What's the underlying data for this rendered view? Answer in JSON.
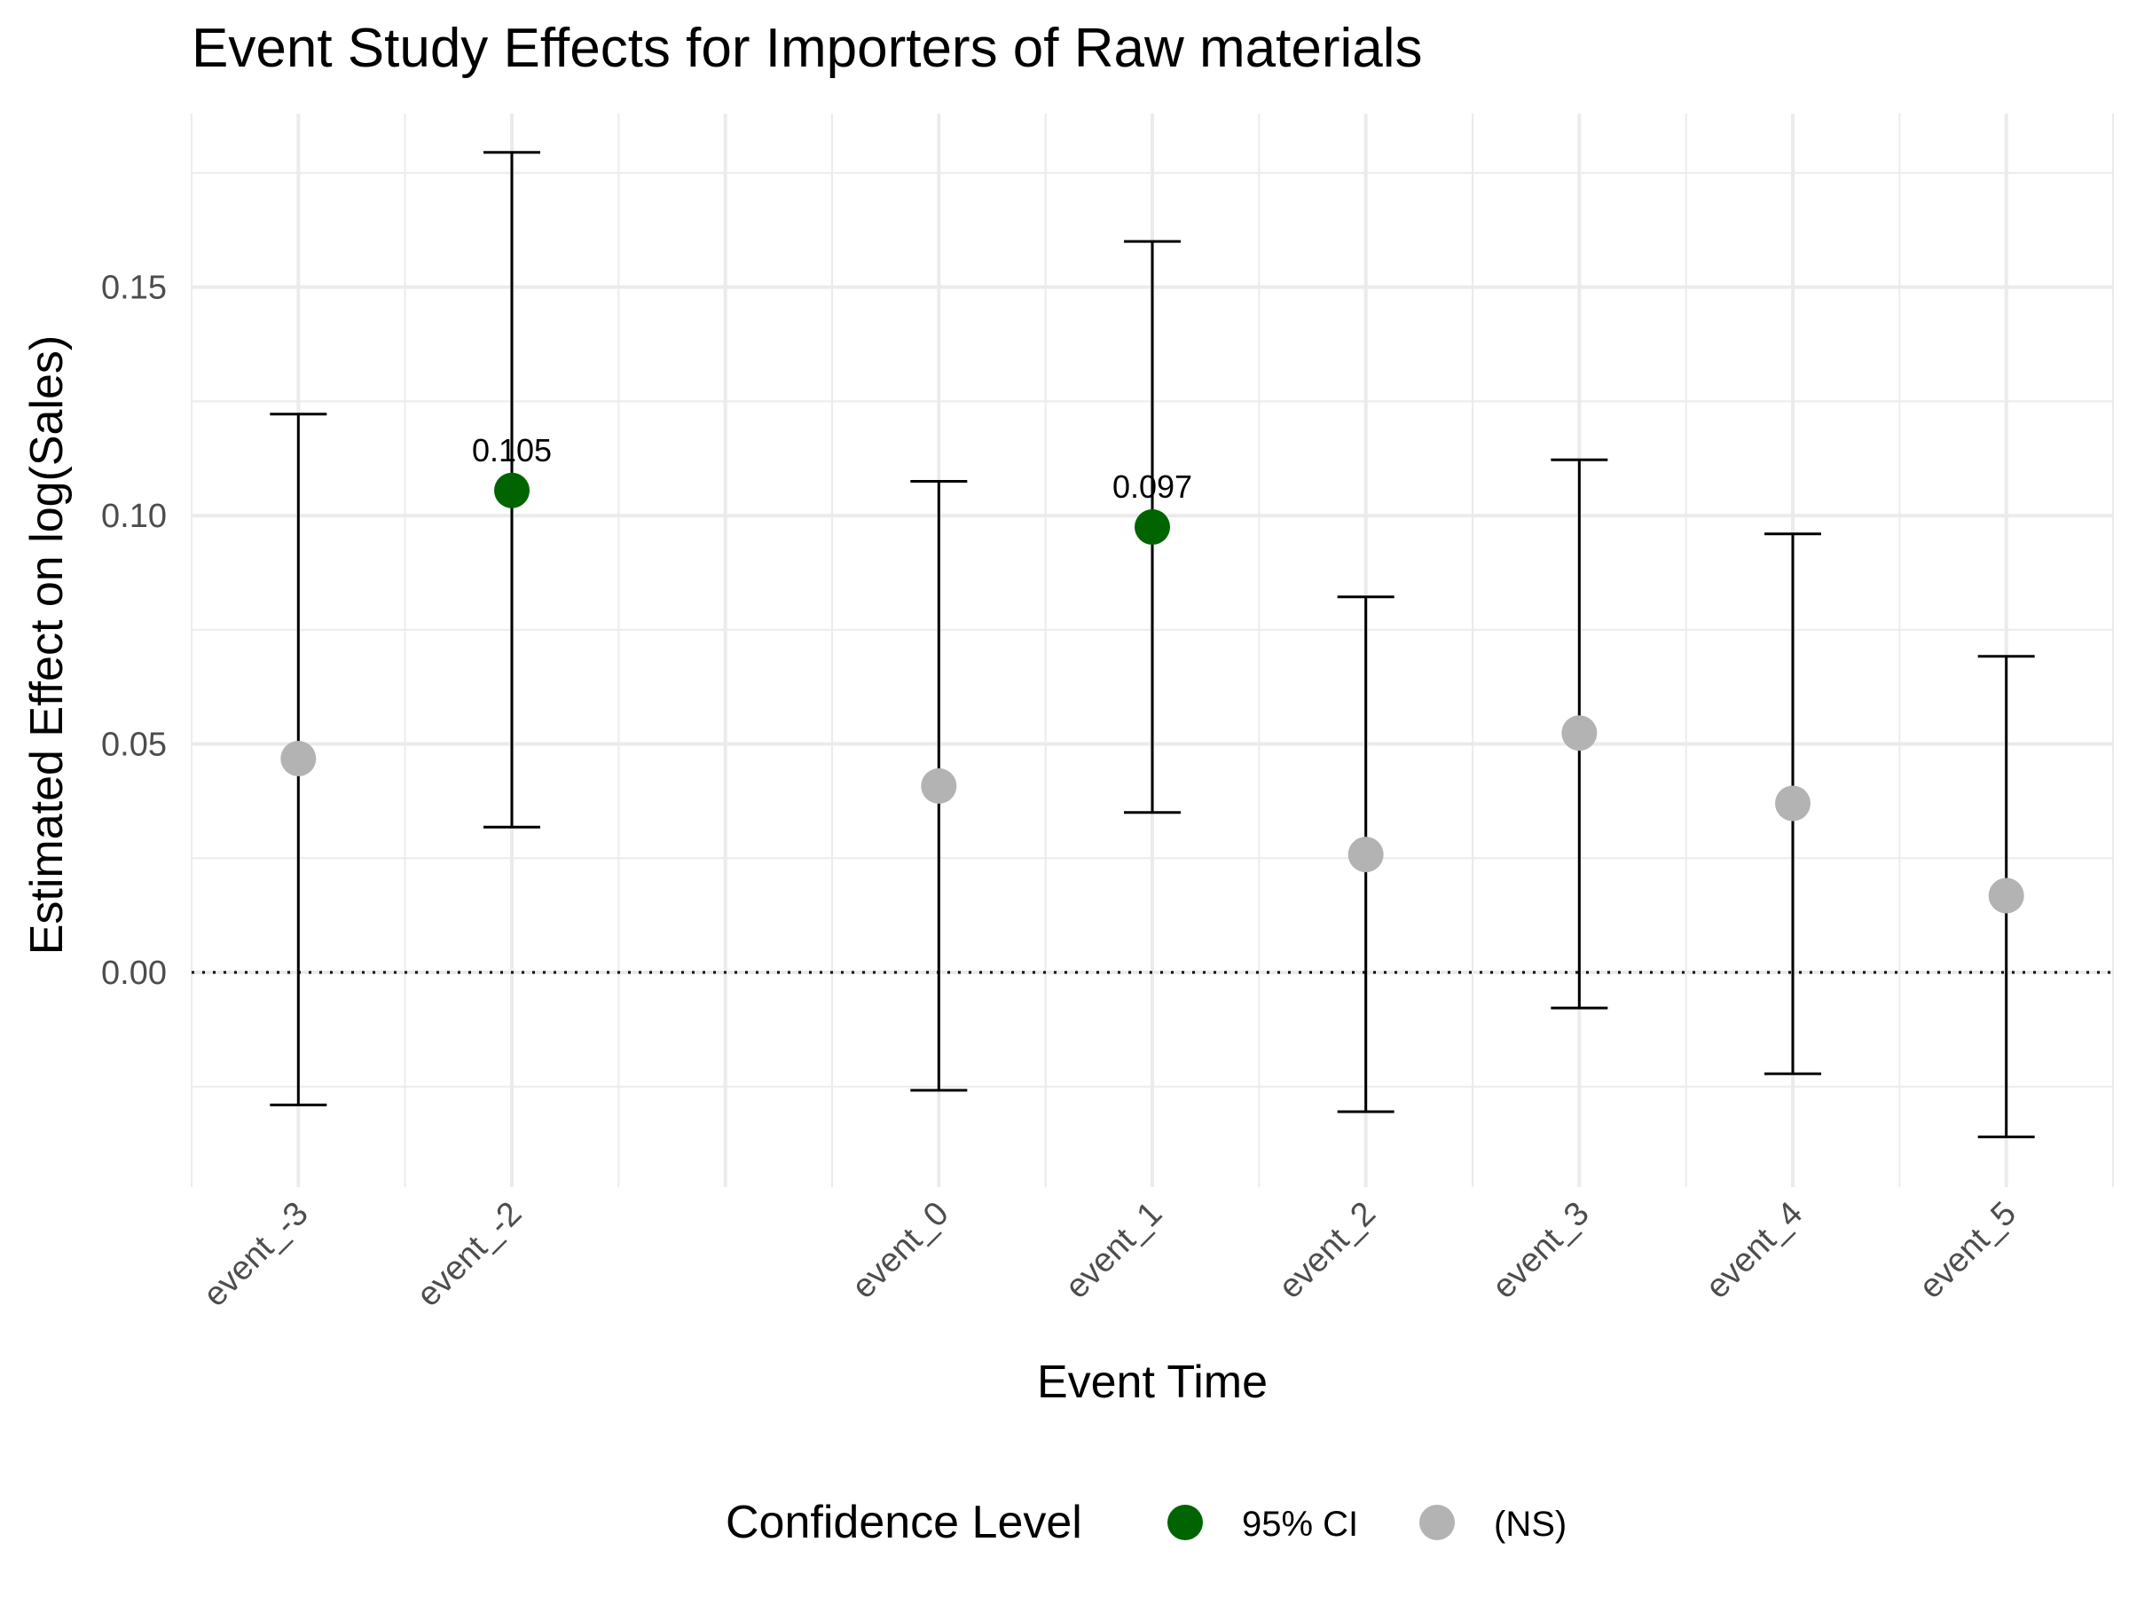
{
  "chart_data": {
    "type": "scatter",
    "title": "Event Study Effects for Importers of Raw materials",
    "xlabel": "Event Time",
    "ylabel": "Estimated Effect on log(Sales)",
    "categories": [
      "event_-3",
      "event_-2",
      "event_0",
      "event_1",
      "event_2",
      "event_3",
      "event_4",
      "event_5"
    ],
    "x_positions": [
      -3,
      -2,
      0,
      1,
      2,
      3,
      4,
      5
    ],
    "estimates": [
      0.0468,
      0.1055,
      0.0408,
      0.0975,
      0.0258,
      0.0524,
      0.037,
      0.0168
    ],
    "ci_low": [
      -0.029,
      0.0318,
      -0.0258,
      0.035,
      -0.0305,
      -0.0078,
      -0.0222,
      -0.036
    ],
    "ci_high": [
      0.1222,
      0.1795,
      0.1075,
      0.16,
      0.0822,
      0.1122,
      0.096,
      0.0692
    ],
    "significance": [
      "NS",
      "95",
      "NS",
      "95",
      "NS",
      "NS",
      "NS",
      "NS"
    ],
    "point_labels": [
      "",
      "0.105",
      "",
      "0.097",
      "",
      "",
      "",
      ""
    ],
    "y_ticks": [
      0.0,
      0.05,
      0.1,
      0.15
    ],
    "y_tick_labels": [
      "0.00",
      "0.05",
      "0.10",
      "0.15"
    ],
    "ylim": [
      -0.047,
      0.188
    ],
    "xlim": [
      -3.5,
      5.5
    ],
    "reference_line": 0,
    "grid": true,
    "legend": {
      "title": "Confidence Level",
      "placement": "bottom",
      "entries": [
        {
          "key": "95",
          "label": "95% CI",
          "color": "#006400"
        },
        {
          "key": "NS",
          "label": "(NS)",
          "color": "#b3b3b3"
        }
      ]
    }
  }
}
